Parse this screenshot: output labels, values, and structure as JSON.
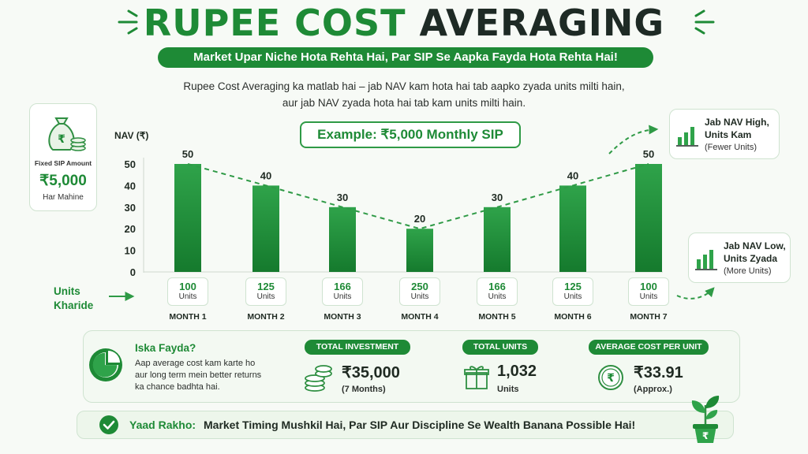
{
  "header": {
    "title_green": "RUPEE COST",
    "title_dark": "AVERAGING",
    "banner": "Market Upar Niche Hota Rehta Hai, Par SIP Se Aapka Fayda Hota Rehta Hai!",
    "desc_line1": "Rupee Cost Averaging ka matlab hai – jab NAV kam hota hai tab aapko zyada units milti hain,",
    "desc_line2": "aur jab NAV zyada hota hai tab kam units milti hain."
  },
  "fixed_sip": {
    "label": "Fixed SIP Amount",
    "amount": "₹5,000",
    "sub": "Har Mahine",
    "icon": "money-bag-icon"
  },
  "example_label": "Example: ₹5,000 Monthly SIP",
  "nav_high": {
    "line1": "Jab NAV High,",
    "line2": "Units Kam",
    "line3": "(Fewer Units)"
  },
  "nav_low": {
    "line1": "Jab NAV Low,",
    "line2": "Units Zyada",
    "line3": "(More Units)"
  },
  "units_label": {
    "line1": "Units",
    "line2": "Kharide"
  },
  "units_word": "Units",
  "chart_data": {
    "type": "bar",
    "ylabel": "NAV (₹)",
    "ylim": [
      0,
      50
    ],
    "yticks": [
      0,
      10,
      20,
      30,
      40,
      50
    ],
    "grid": false,
    "categories": [
      "MONTH 1",
      "MONTH 2",
      "MONTH 3",
      "MONTH 4",
      "MONTH 5",
      "MONTH 6",
      "MONTH 7"
    ],
    "values": [
      50,
      40,
      30,
      20,
      30,
      40,
      50
    ],
    "units": [
      100,
      125,
      166,
      250,
      166,
      125,
      100
    ],
    "trend_line": "dashed",
    "bar_color": "#1e8a36"
  },
  "benefit": {
    "title": "Iska Fayda?",
    "text": "Aap average cost kam karte ho aur long term mein better returns ka chance badhta hai."
  },
  "stats": {
    "investment": {
      "head": "TOTAL INVESTMENT",
      "value": "₹35,000",
      "sub": "(7 Months)"
    },
    "units": {
      "head": "TOTAL UNITS",
      "value": "1,032",
      "sub": "Units"
    },
    "avg_cost": {
      "head": "AVERAGE COST PER UNIT",
      "value": "₹33.91",
      "sub": "(Approx.)"
    }
  },
  "footer": {
    "bold": "Yaad Rakho:",
    "text": "Market Timing Mushkil Hai, Par SIP Aur Discipline Se Wealth Banana Possible Hai!"
  },
  "colors": {
    "accent": "#1e8a36",
    "dark": "#1e2a25",
    "light_panel": "#f3f9f2"
  }
}
